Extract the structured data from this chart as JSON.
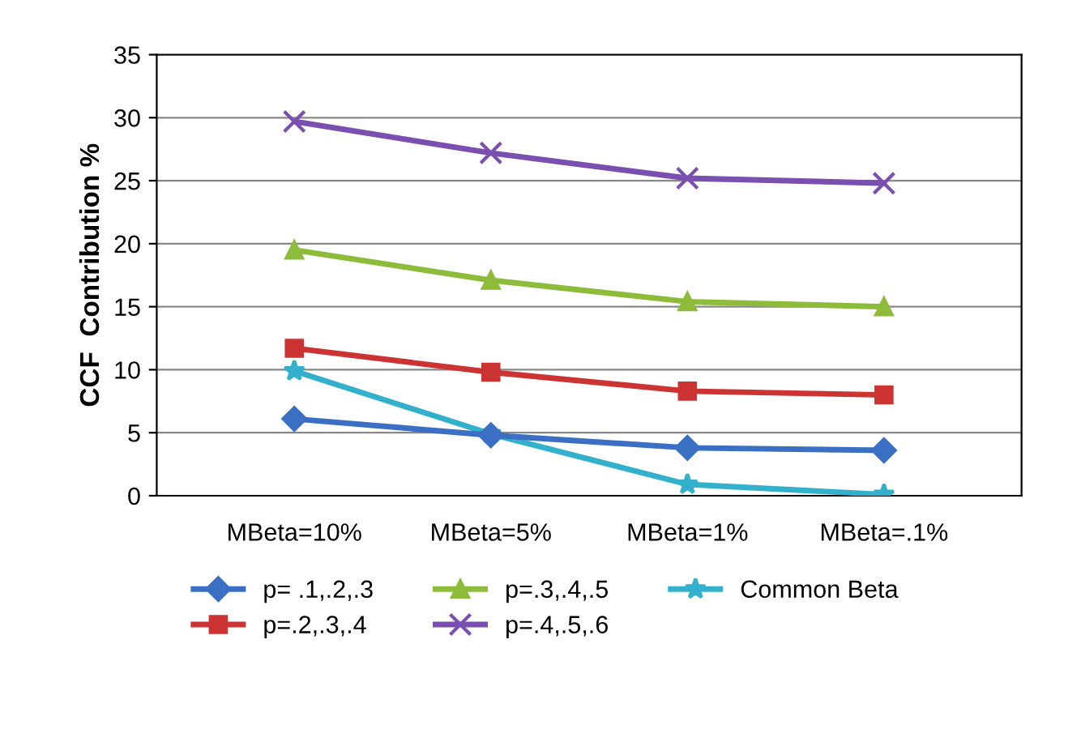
{
  "chart_data": {
    "type": "line",
    "ylabel": "CCF  Contribution %",
    "categories": [
      "MBeta=10%",
      "MBeta=5%",
      "MBeta=1%",
      "MBeta=.1%"
    ],
    "series": [
      {
        "name": "p= .1,.2,.3",
        "color": "#3a6fc4",
        "marker": "diamond",
        "values": [
          6.1,
          4.8,
          3.8,
          3.6
        ]
      },
      {
        "name": "p=.2,.3,.4",
        "color": "#cc3333",
        "marker": "square",
        "values": [
          11.7,
          9.8,
          8.3,
          8.0
        ]
      },
      {
        "name": "p=.3,.4,.5",
        "color": "#8dbb3a",
        "marker": "triangle",
        "values": [
          19.5,
          17.1,
          15.4,
          15.0
        ]
      },
      {
        "name": "p=.4,.5,.6",
        "color": "#7b4fb0",
        "marker": "cross",
        "values": [
          29.7,
          27.2,
          25.2,
          24.8
        ]
      },
      {
        "name": "Common Beta",
        "color": "#33b0cc",
        "marker": "star",
        "values": [
          9.9,
          4.9,
          0.9,
          0.1
        ]
      }
    ],
    "ylim": [
      0,
      35
    ],
    "yticks": [
      0,
      5,
      10,
      15,
      20,
      25,
      30,
      35
    ],
    "grid": "y",
    "legend": "bottom",
    "line_style": "solid"
  }
}
